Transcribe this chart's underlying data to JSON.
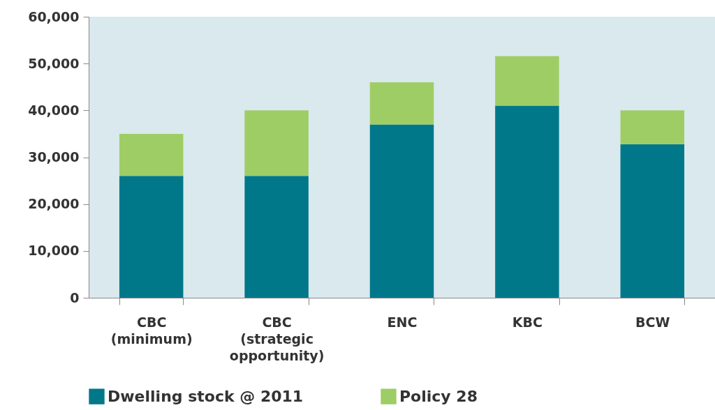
{
  "chart_data": {
    "type": "bar",
    "stacked": true,
    "categories": [
      "CBC\n(minimum)",
      "CBC\n(strategic\nopportunity)",
      "ENC",
      "KBC",
      "BCW"
    ],
    "series": [
      {
        "name": "Dwelling stock @ 2011",
        "color": "#00788a",
        "values": [
          26000,
          26000,
          37000,
          41000,
          32800
        ]
      },
      {
        "name": "Policy 28",
        "color": "#9fcd65",
        "values": [
          9000,
          14000,
          9000,
          10600,
          7200
        ]
      }
    ],
    "ylim": [
      0,
      60000
    ],
    "yticks": [
      {
        "value": 0,
        "label": "0"
      },
      {
        "value": 10000,
        "label": "10,000"
      },
      {
        "value": 20000,
        "label": "20,000"
      },
      {
        "value": 30000,
        "label": "30,000"
      },
      {
        "value": 40000,
        "label": "40,000"
      },
      {
        "value": 50000,
        "label": "50,000"
      },
      {
        "value": 60000,
        "label": "60,000"
      }
    ],
    "grid": false,
    "legend": "bottom left"
  }
}
